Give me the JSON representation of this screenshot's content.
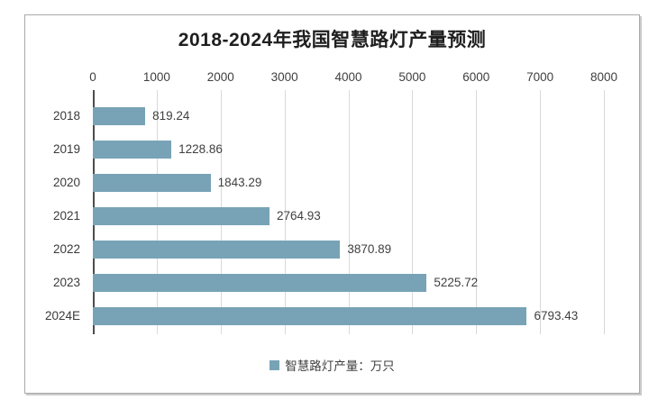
{
  "chart_data": {
    "type": "bar",
    "orientation": "horizontal",
    "title": "2018-2024年我国智慧路灯产量预测",
    "categories": [
      "2018",
      "2019",
      "2020",
      "2021",
      "2022",
      "2023",
      "2024E"
    ],
    "series": [
      {
        "name": "智慧路灯产量：万只",
        "values": [
          819.24,
          1228.86,
          1843.29,
          2764.93,
          3870.89,
          5225.72,
          6793.43
        ],
        "value_labels": [
          "819.24",
          "1228.86",
          "1843.29",
          "2764.93",
          "3870.89",
          "5225.72",
          "6793.43"
        ]
      }
    ],
    "xlim": [
      0,
      8000
    ],
    "x_tick_labels": [
      "0",
      "1000",
      "2000",
      "3000",
      "4000",
      "5000",
      "6000",
      "7000",
      "8000"
    ],
    "x_axis_position": "top",
    "grid": true,
    "legend_position": "bottom",
    "colors": {
      "bar": "#78a3b6",
      "gridline": "#d9d9d9",
      "axis_line": "#4d4d4d",
      "text": "#3f3f3f",
      "title": "#1f1f1f",
      "frame_border": "#a9a9a9",
      "background": "#ffffff"
    }
  }
}
